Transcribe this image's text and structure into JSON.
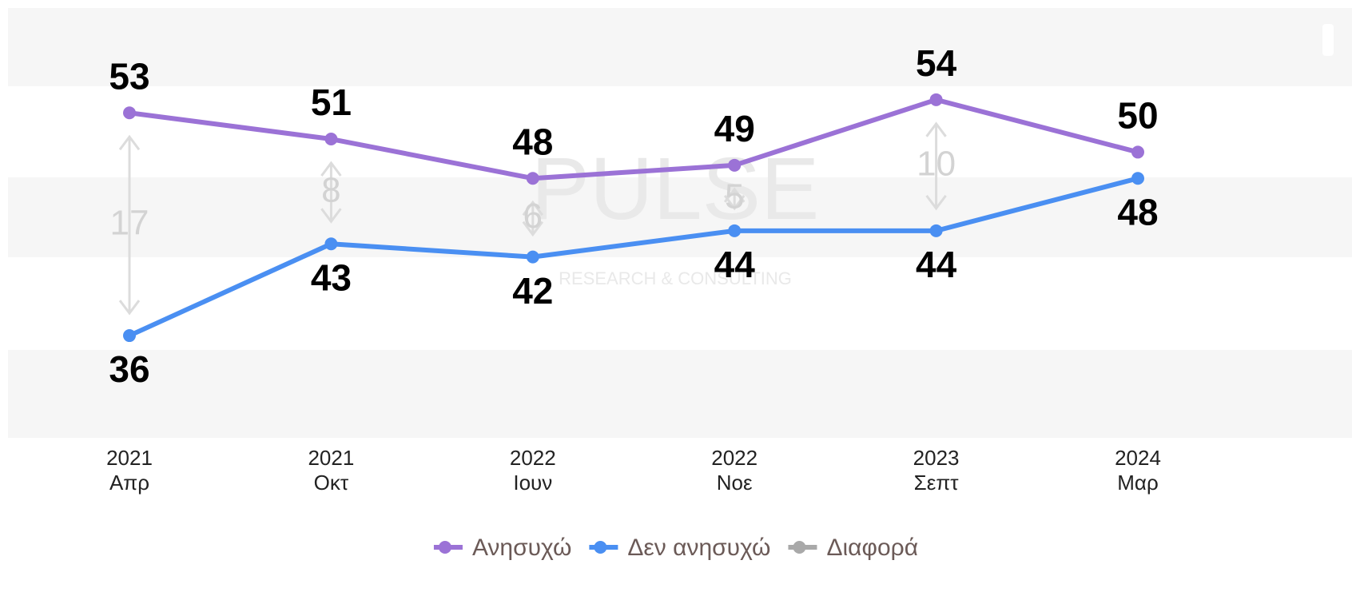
{
  "chart_data": {
    "type": "line",
    "categories": [
      [
        "2021",
        "Απρ"
      ],
      [
        "2021",
        "Οκτ"
      ],
      [
        "2022",
        "Ιουν"
      ],
      [
        "2022",
        "Νοε"
      ],
      [
        "2023",
        "Σεπτ"
      ],
      [
        "2024",
        "Μαρ"
      ]
    ],
    "series": [
      {
        "name": "Ανησυχώ",
        "color": "#9b72d6",
        "values": [
          53,
          51,
          48,
          49,
          54,
          50
        ]
      },
      {
        "name": "Δεν ανησυχώ",
        "color": "#4a8ff2",
        "values": [
          36,
          43,
          42,
          44,
          44,
          48
        ]
      },
      {
        "name": "Διαφορά",
        "color": "#a9a9a9",
        "values": [
          17,
          8,
          6,
          5,
          10,
          null
        ]
      }
    ],
    "ylim": [
      28.2,
      61
    ],
    "legend": "bottom",
    "watermark": [
      "PULSE",
      "RESEARCH & CONSULTING"
    ]
  }
}
